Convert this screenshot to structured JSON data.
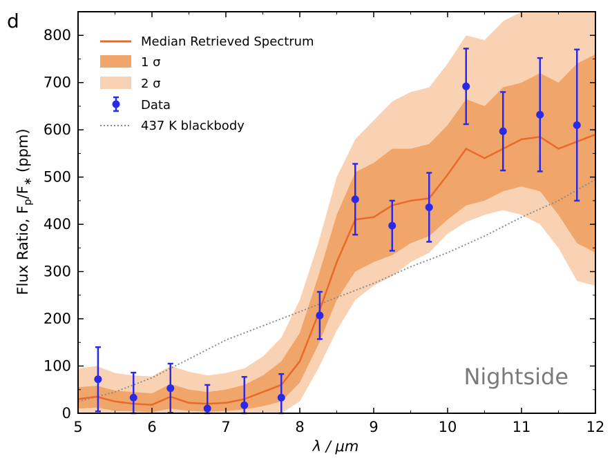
{
  "chart_data": {
    "type": "line",
    "panel_label": "d",
    "region_label": "Nightside",
    "xlabel": "λ / μm",
    "ylabel_main": "Flux Ratio, F",
    "ylabel_sub_p": "p",
    "ylabel_slash": "/F",
    "ylabel_sub_star": "∗",
    "ylabel_unit": " (ppm)",
    "xlim": [
      5,
      12
    ],
    "ylim": [
      0,
      850
    ],
    "xticks": [
      5,
      6,
      7,
      8,
      9,
      10,
      11,
      12
    ],
    "yticks": [
      0,
      100,
      200,
      300,
      400,
      500,
      600,
      700,
      800
    ],
    "legend": {
      "position": "top-left",
      "entries": [
        {
          "label": "Median Retrieved Spectrum",
          "kind": "line"
        },
        {
          "label": "1 σ",
          "kind": "band1"
        },
        {
          "label": "2 σ",
          "kind": "band2"
        },
        {
          "label": "Data",
          "kind": "errorbar"
        },
        {
          "label": "437 K blackbody",
          "kind": "dotted"
        }
      ]
    },
    "colors": {
      "median": "#e8692a",
      "band1": "#f0a56a",
      "band2": "#f8d2b3",
      "data": "#2a2ae6",
      "blackbody": "#8a8a8a"
    },
    "data_points": [
      {
        "x": 5.27,
        "y": 72,
        "yerr": 68
      },
      {
        "x": 5.75,
        "y": 33,
        "yerr": 53
      },
      {
        "x": 6.25,
        "y": 53,
        "yerr": 52
      },
      {
        "x": 6.75,
        "y": 10,
        "yerr": 50
      },
      {
        "x": 7.25,
        "y": 17,
        "yerr": 60
      },
      {
        "x": 7.75,
        "y": 33,
        "yerr": 50
      },
      {
        "x": 8.27,
        "y": 207,
        "yerr": 50
      },
      {
        "x": 8.75,
        "y": 453,
        "yerr": 75
      },
      {
        "x": 9.25,
        "y": 397,
        "yerr": 53
      },
      {
        "x": 9.75,
        "y": 436,
        "yerr": 73
      },
      {
        "x": 10.25,
        "y": 692,
        "yerr": 80
      },
      {
        "x": 10.75,
        "y": 597,
        "yerr": 83
      },
      {
        "x": 11.25,
        "y": 632,
        "yerr": 120
      },
      {
        "x": 11.75,
        "y": 610,
        "yerr": 160
      }
    ],
    "median_spectrum": {
      "x": [
        5.0,
        5.25,
        5.5,
        5.75,
        6.0,
        6.25,
        6.5,
        6.75,
        7.0,
        7.25,
        7.5,
        7.75,
        8.0,
        8.25,
        8.5,
        8.75,
        9.0,
        9.25,
        9.5,
        9.75,
        10.0,
        10.25,
        10.5,
        10.75,
        11.0,
        11.25,
        11.5,
        11.75,
        12.0
      ],
      "y": [
        30,
        35,
        25,
        20,
        18,
        35,
        22,
        20,
        22,
        30,
        45,
        60,
        110,
        210,
        320,
        410,
        415,
        440,
        450,
        455,
        505,
        560,
        540,
        560,
        580,
        585,
        560,
        575,
        590
      ]
    },
    "band_1sigma": {
      "x": [
        5.0,
        5.25,
        5.5,
        5.75,
        6.0,
        6.25,
        6.5,
        6.75,
        7.0,
        7.25,
        7.5,
        7.75,
        8.0,
        8.25,
        8.5,
        8.75,
        9.0,
        9.25,
        9.5,
        9.75,
        10.0,
        10.25,
        10.5,
        10.75,
        11.0,
        11.25,
        11.5,
        11.75,
        12.0
      ],
      "lower": [
        10,
        12,
        5,
        4,
        2,
        10,
        5,
        3,
        5,
        8,
        15,
        25,
        65,
        145,
        240,
        300,
        320,
        335,
        360,
        375,
        410,
        440,
        450,
        470,
        480,
        470,
        420,
        360,
        340
      ],
      "upper": [
        55,
        58,
        48,
        45,
        42,
        62,
        50,
        45,
        50,
        60,
        80,
        110,
        170,
        290,
        420,
        510,
        530,
        560,
        560,
        570,
        610,
        665,
        650,
        690,
        700,
        720,
        700,
        740,
        760
      ]
    },
    "band_2sigma": {
      "x": [
        5.0,
        5.25,
        5.5,
        5.75,
        6.0,
        6.25,
        6.5,
        6.75,
        7.0,
        7.25,
        7.5,
        7.75,
        8.0,
        8.25,
        8.5,
        8.75,
        9.0,
        9.25,
        9.5,
        9.75,
        10.0,
        10.25,
        10.5,
        10.75,
        11.0,
        11.25,
        11.5,
        11.75,
        12.0
      ],
      "lower": [
        0,
        0,
        0,
        0,
        0,
        0,
        0,
        0,
        0,
        0,
        0,
        0,
        25,
        95,
        175,
        240,
        270,
        290,
        320,
        340,
        380,
        405,
        420,
        430,
        420,
        400,
        350,
        280,
        270
      ],
      "upper": [
        95,
        100,
        85,
        80,
        78,
        100,
        88,
        80,
        85,
        95,
        120,
        160,
        240,
        360,
        500,
        580,
        620,
        660,
        680,
        690,
        740,
        800,
        790,
        830,
        850,
        850,
        850,
        850,
        850
      ]
    },
    "blackbody": {
      "x": [
        5.0,
        5.5,
        6.0,
        6.5,
        7.0,
        7.5,
        8.0,
        8.5,
        9.0,
        9.5,
        10.0,
        10.5,
        11.0,
        11.5,
        12.0
      ],
      "y": [
        25,
        45,
        75,
        115,
        155,
        185,
        215,
        245,
        275,
        310,
        340,
        375,
        415,
        450,
        495
      ]
    }
  }
}
